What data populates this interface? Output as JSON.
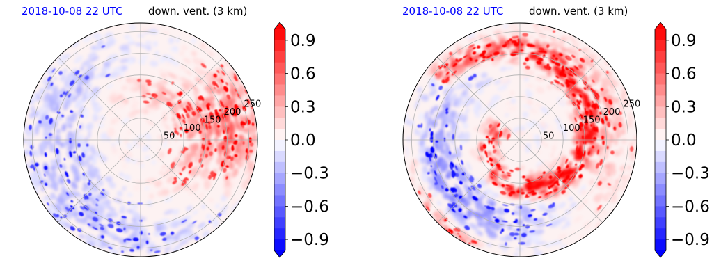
{
  "colors": {
    "positive": "#ff0000",
    "negative": "#0000ff",
    "neutral": "#ffffff",
    "grid": "#b0b0b0",
    "title_time": "#0000ff",
    "title_var": "#000000"
  },
  "chart_data": [
    {
      "type": "heatmap",
      "projection": "polar",
      "title_left": "2018-10-08 22 UTC",
      "title_right": "down. vent. (3 km)",
      "radial_ticks": [
        50,
        100,
        150,
        200,
        250
      ],
      "radial_tick_labels": [
        "50",
        "100",
        "150",
        "200",
        "250"
      ],
      "r_max": 270,
      "grid": true,
      "colormap": "bwr",
      "clim": [
        -1.0,
        1.0
      ],
      "colorbar_ticks": [
        0.9,
        0.6,
        0.3,
        0.0,
        -0.3,
        -0.6,
        -0.9
      ],
      "colorbar_tick_labels": [
        "0.9",
        "0.6",
        "0.3",
        "0.0",
        "−0.3",
        "−0.6",
        "−0.9"
      ],
      "colorbar_extend": "both",
      "pattern": "scattered cells; strong positive band on east side, weak negative patches west and south"
    },
    {
      "type": "heatmap",
      "projection": "polar",
      "title_left": "2018-10-08 22 UTC",
      "title_right": "down. vent. (3 km)",
      "radial_ticks": [
        50,
        100,
        150,
        200,
        250
      ],
      "radial_tick_labels": [
        "50",
        "100",
        "150",
        "200",
        "250"
      ],
      "r_max": 270,
      "grid": true,
      "colormap": "bwr",
      "clim": [
        -1.0,
        1.0
      ],
      "colorbar_ticks": [
        0.9,
        0.6,
        0.3,
        0.0,
        -0.3,
        -0.6,
        -0.9
      ],
      "colorbar_tick_labels": [
        "0.9",
        "0.6",
        "0.3",
        "0.0",
        "−0.3",
        "−0.6",
        "−0.9"
      ],
      "colorbar_extend": "both",
      "pattern": "strong positive spiral band wrapping from southeast through north into the core; negative streaks on western side"
    }
  ]
}
